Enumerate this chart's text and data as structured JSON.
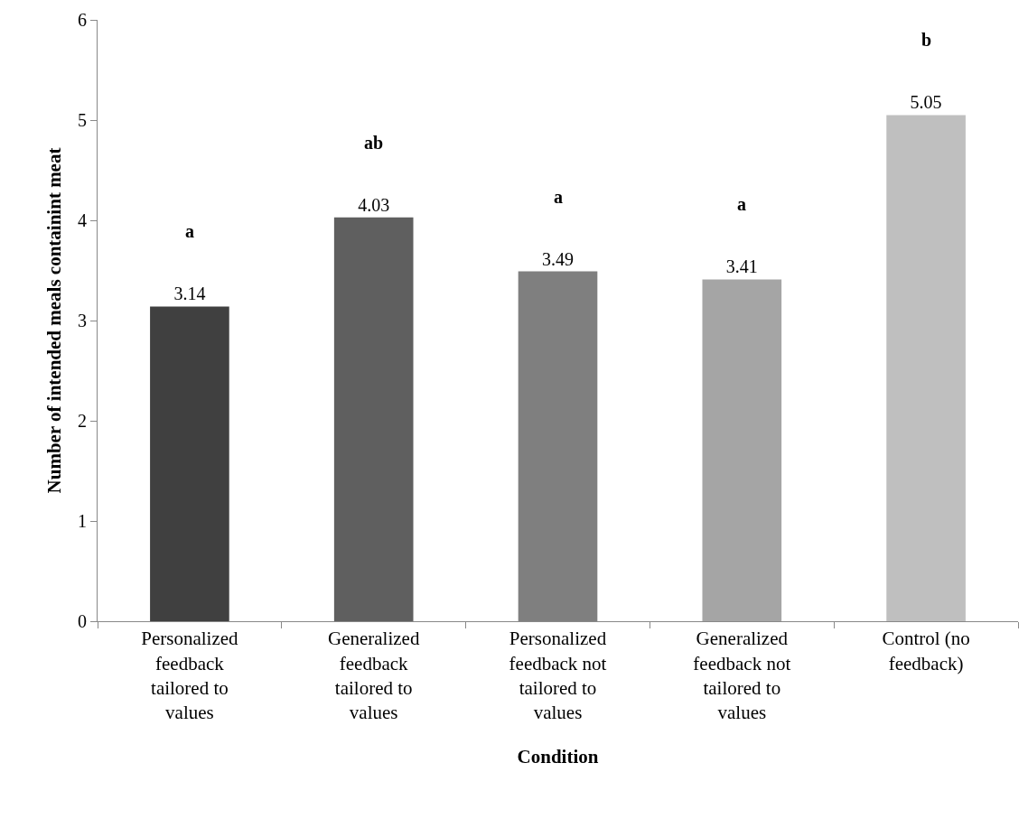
{
  "chart_data": {
    "type": "bar",
    "xlabel": "Condition",
    "ylabel": "Number of intended meals containint meat",
    "categories": [
      "Personalized feedback tailored to values",
      "Generalized feedback tailored to values",
      "Personalized feedback not tailored to values",
      "Generalized feedback not tailored to values",
      "Control (no feedback)"
    ],
    "values": [
      3.14,
      4.03,
      3.49,
      3.41,
      5.05
    ],
    "colors": [
      "#404040",
      "#5f5f5f",
      "#7f7f7f",
      "#a5a5a5",
      "#bfbfbf"
    ],
    "data_labels": true,
    "ylim": [
      0,
      6
    ],
    "yticks": [
      0,
      1,
      2,
      3,
      4,
      5,
      6
    ],
    "grid": false,
    "annotations": [
      "a",
      "ab",
      "a",
      "a",
      "b"
    ]
  }
}
